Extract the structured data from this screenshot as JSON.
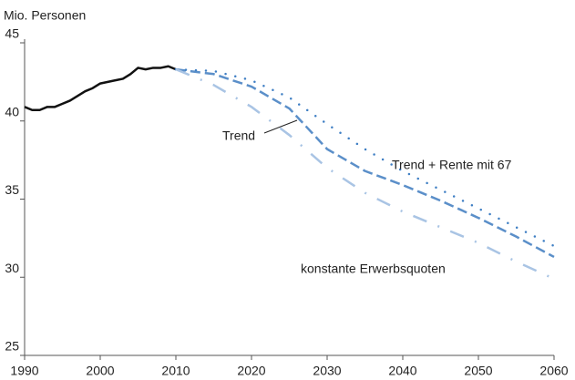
{
  "chart_data": {
    "type": "line",
    "y_label": "Mio. Personen",
    "xlim": [
      1990,
      2060
    ],
    "xticks": [
      1990,
      2000,
      2010,
      2020,
      2030,
      2040,
      2050,
      2060
    ],
    "ylim": [
      25,
      45
    ],
    "yticks": [
      25,
      30,
      35,
      40,
      45
    ],
    "grid": false,
    "series": [
      {
        "color": "#111111",
        "style": "solid",
        "x": [
          1990,
          1991,
          1992,
          1993,
          1994,
          1995,
          1996,
          1997,
          1998,
          1999,
          2000,
          2001,
          2002,
          2003,
          2004,
          2005,
          2006,
          2007,
          2008,
          2009,
          2010
        ],
        "values": [
          40.9,
          40.7,
          40.7,
          40.9,
          40.9,
          41.1,
          41.3,
          41.6,
          41.9,
          42.1,
          42.4,
          42.5,
          42.6,
          42.7,
          43.0,
          43.4,
          43.3,
          43.4,
          43.4,
          43.5,
          43.3
        ]
      },
      {
        "name": "Trend",
        "color": "#5b8fc9",
        "style": "dashed",
        "x": [
          2010,
          2015,
          2020,
          2025,
          2030,
          2035,
          2040,
          2045,
          2050,
          2055,
          2060
        ],
        "values": [
          43.3,
          43.0,
          42.2,
          40.8,
          38.2,
          36.8,
          35.9,
          34.9,
          33.8,
          32.6,
          31.3
        ]
      },
      {
        "name": "Trend + Rente mit 67",
        "color": "#3f7fc4",
        "style": "dotted",
        "x": [
          2010,
          2015,
          2020,
          2025,
          2030,
          2035,
          2040,
          2045,
          2050,
          2055,
          2060
        ],
        "values": [
          43.3,
          43.2,
          42.6,
          41.5,
          39.8,
          38.2,
          36.8,
          35.6,
          34.4,
          33.2,
          32.0
        ]
      },
      {
        "name": "konstante Erwerbsquoten",
        "color": "#a9c4e4",
        "style": "dashdot",
        "x": [
          2010,
          2015,
          2020,
          2025,
          2030,
          2035,
          2040,
          2045,
          2050,
          2055,
          2060
        ],
        "values": [
          43.3,
          42.3,
          40.9,
          39.1,
          37.0,
          35.4,
          34.2,
          33.2,
          32.2,
          31.0,
          29.9
        ]
      }
    ]
  }
}
